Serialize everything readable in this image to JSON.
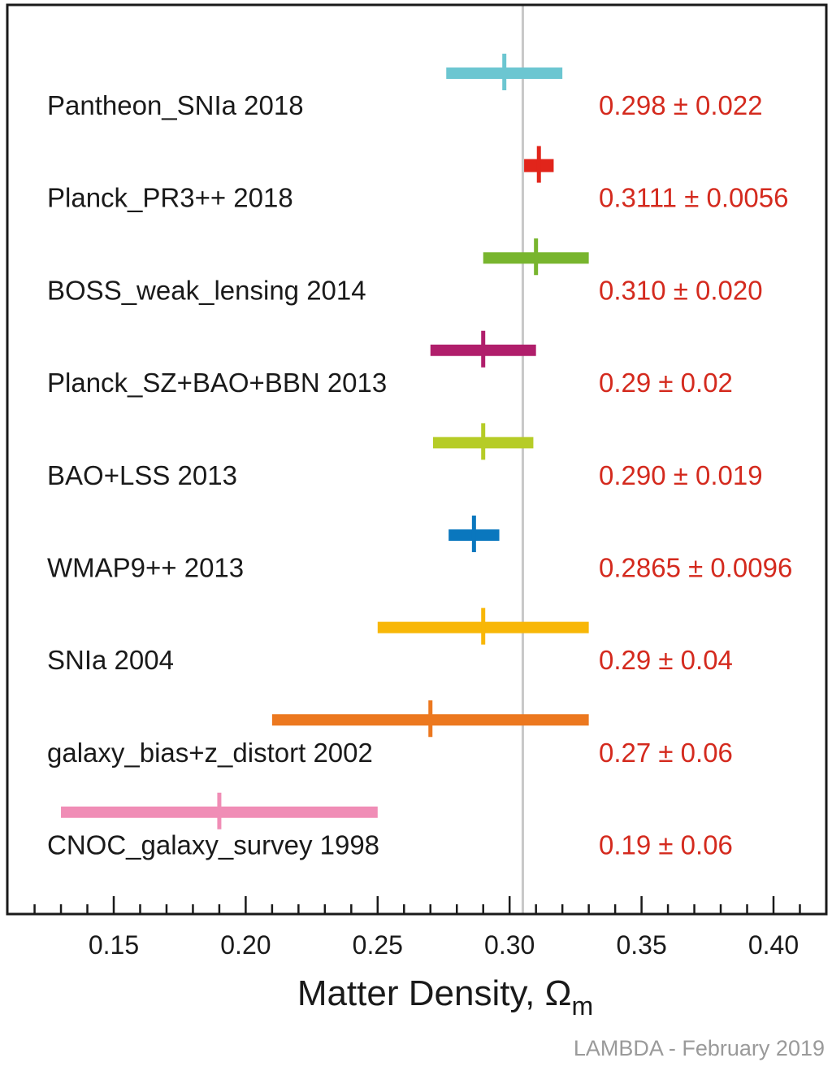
{
  "chart_data": {
    "type": "forest-plot",
    "title": "",
    "xlabel": "Matter Density, Ω",
    "xlabel_subscript": "m",
    "xlim": [
      0.11,
      0.42
    ],
    "x_ticks": [
      0.15,
      0.2,
      0.25,
      0.3,
      0.35,
      0.4
    ],
    "x_tick_labels": [
      "0.15",
      "0.20",
      "0.25",
      "0.30",
      "0.35",
      "0.40"
    ],
    "minor_tick_step": 0.01,
    "reference_line": 0.305,
    "rows": [
      {
        "label": "Pantheon_SNIa 2018",
        "value": 0.298,
        "low": 0.276,
        "high": 0.32,
        "value_text": "0.298 ± 0.022",
        "color": "#6cc6d1"
      },
      {
        "label": "Planck_PR3++ 2018",
        "value": 0.3111,
        "low": 0.3055,
        "high": 0.3167,
        "value_text": "0.3111 ± 0.0056",
        "color": "#e1251b"
      },
      {
        "label": "BOSS_weak_lensing 2014",
        "value": 0.31,
        "low": 0.29,
        "high": 0.33,
        "value_text": "0.310 ± 0.020",
        "color": "#78b52e"
      },
      {
        "label": "Planck_SZ+BAO+BBN 2013",
        "value": 0.29,
        "low": 0.27,
        "high": 0.31,
        "value_text": "0.29 ± 0.02",
        "color": "#b01e6b"
      },
      {
        "label": "BAO+LSS 2013",
        "value": 0.29,
        "low": 0.271,
        "high": 0.309,
        "value_text": "0.290 ± 0.019",
        "color": "#b6cc27"
      },
      {
        "label": "WMAP9++ 2013",
        "value": 0.2865,
        "low": 0.2769,
        "high": 0.2961,
        "value_text": "0.2865 ± 0.0096",
        "color": "#0a77be"
      },
      {
        "label": "SNIa 2004",
        "value": 0.29,
        "low": 0.25,
        "high": 0.33,
        "value_text": "0.29 ± 0.04",
        "color": "#f8b707"
      },
      {
        "label": "galaxy_bias+z_distort 2002",
        "value": 0.27,
        "low": 0.21,
        "high": 0.33,
        "value_text": "0.27 ± 0.06",
        "color": "#ec781f"
      },
      {
        "label": "CNOC_galaxy_survey 1998",
        "value": 0.19,
        "low": 0.13,
        "high": 0.25,
        "value_text": "0.19 ± 0.06",
        "color": "#f08db6"
      }
    ]
  },
  "colors": {
    "value_text": "#d42a1e",
    "reference_line": "#c8c8c8",
    "axis": "#1a1a1a"
  },
  "credit": "LAMBDA - February 2019"
}
